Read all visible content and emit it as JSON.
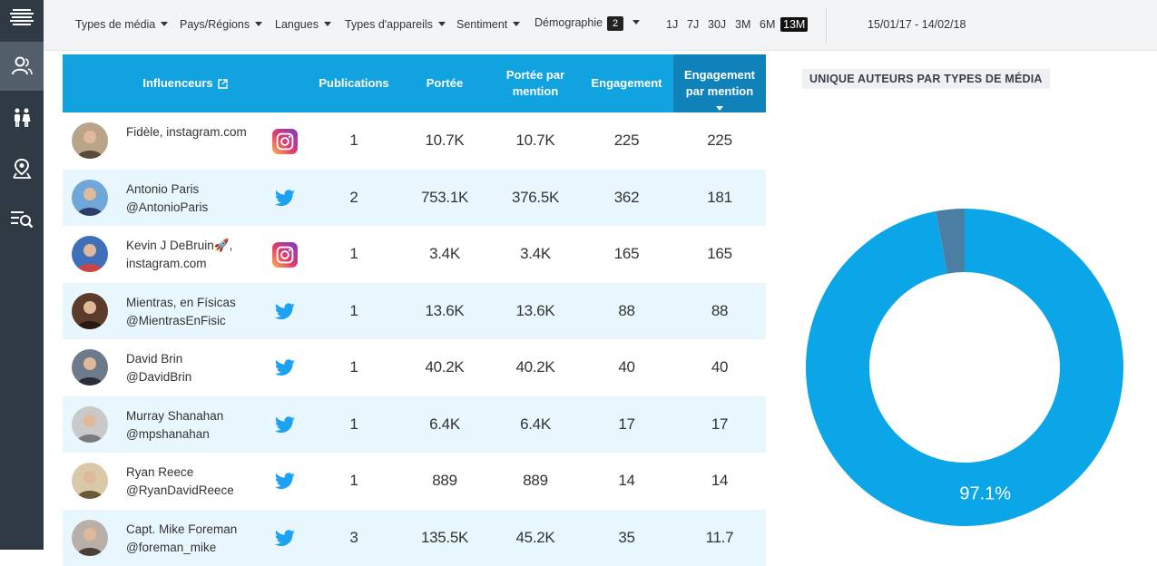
{
  "sidebar": {
    "items": [
      {
        "name": "influencers",
        "icon": "user-group-icon"
      },
      {
        "name": "demographics",
        "icon": "people-icon"
      },
      {
        "name": "location",
        "icon": "map-pin-icon"
      },
      {
        "name": "search-list",
        "icon": "list-search-icon"
      }
    ]
  },
  "filters": {
    "media_types": "Types de média",
    "regions": "Pays/Régions",
    "languages": "Langues",
    "devices": "Types d'appareils",
    "sentiment": "Sentiment",
    "demographics": "Démographie",
    "demographics_badge": "2"
  },
  "periods": [
    "1J",
    "7J",
    "30J",
    "3M",
    "6M",
    "13M"
  ],
  "active_period": "13M",
  "date_range": "15/01/17 - 14/02/18",
  "table": {
    "headers": {
      "influencers": "Influenceurs",
      "publications": "Publications",
      "reach": "Portée",
      "reach_per_mention_l1": "Portée par",
      "reach_per_mention_l2": "mention",
      "engagement": "Engagement",
      "engagement_per_mention_l1": "Engagement",
      "engagement_per_mention_l2": "par mention"
    },
    "rows": [
      {
        "name_l1": "Fidèle, instagram.com",
        "name_l2": "",
        "network": "instagram",
        "publications": "1",
        "reach": "10.7K",
        "reach_per_mention": "10.7K",
        "engagement": "225",
        "engagement_per_mention": "225"
      },
      {
        "name_l1": "Antonio Paris",
        "name_l2": "@AntonioParis",
        "network": "twitter",
        "publications": "2",
        "reach": "753.1K",
        "reach_per_mention": "376.5K",
        "engagement": "362",
        "engagement_per_mention": "181"
      },
      {
        "name_l1": "Kevin J DeBruin🚀,",
        "name_l2": "instagram.com",
        "network": "instagram",
        "publications": "1",
        "reach": "3.4K",
        "reach_per_mention": "3.4K",
        "engagement": "165",
        "engagement_per_mention": "165"
      },
      {
        "name_l1": "Mientras, en Físicas",
        "name_l2": "@MientrasEnFisic",
        "network": "twitter",
        "publications": "1",
        "reach": "13.6K",
        "reach_per_mention": "13.6K",
        "engagement": "88",
        "engagement_per_mention": "88"
      },
      {
        "name_l1": "David Brin",
        "name_l2": "@DavidBrin",
        "network": "twitter",
        "publications": "1",
        "reach": "40.2K",
        "reach_per_mention": "40.2K",
        "engagement": "40",
        "engagement_per_mention": "40"
      },
      {
        "name_l1": "Murray Shanahan",
        "name_l2": "@mpshanahan",
        "network": "twitter",
        "publications": "1",
        "reach": "6.4K",
        "reach_per_mention": "6.4K",
        "engagement": "17",
        "engagement_per_mention": "17"
      },
      {
        "name_l1": "Ryan Reece",
        "name_l2": "@RyanDavidReece",
        "network": "twitter",
        "publications": "1",
        "reach": "889",
        "reach_per_mention": "889",
        "engagement": "14",
        "engagement_per_mention": "14"
      },
      {
        "name_l1": "Capt. Mike Foreman",
        "name_l2": "@foreman_mike",
        "network": "twitter",
        "publications": "3",
        "reach": "135.5K",
        "reach_per_mention": "45.2K",
        "engagement": "35",
        "engagement_per_mention": "11.7"
      }
    ]
  },
  "chart_title": "UNIQUE AUTEURS PAR TYPES DE MÉDIA",
  "chart_data": {
    "type": "pie",
    "donut": true,
    "title": "UNIQUE AUTEURS PAR TYPES DE MÉDIA",
    "slices": [
      {
        "value": 97.1,
        "label": "97.1%",
        "color": "#0ba6e8"
      },
      {
        "value": 2.9,
        "label": "",
        "color": "#4a7ea3"
      }
    ]
  },
  "colors": {
    "sidebar": "#2f3a44",
    "accent": "#11a2e0",
    "row_alt": "#e8f7fd",
    "twitter": "#1da1f2"
  }
}
